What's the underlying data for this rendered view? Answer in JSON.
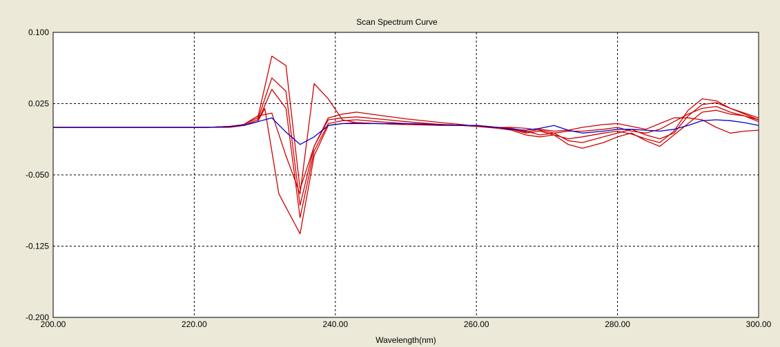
{
  "chart_data": {
    "type": "line",
    "title": "Scan Spectrum Curve",
    "xlabel": "Wavelength(nm)",
    "ylabel": "",
    "xlim": [
      200,
      300
    ],
    "ylim": [
      -0.2,
      0.1
    ],
    "grid": true,
    "x_ticks": [
      200,
      220,
      240,
      260,
      280,
      300
    ],
    "y_ticks": [
      0.1,
      0.025,
      -0.05,
      -0.125,
      -0.2
    ],
    "x_tick_labels": [
      "200.00",
      "220.00",
      "240.00",
      "260.00",
      "280.00",
      "300.00"
    ],
    "y_tick_labels": [
      "0.100",
      "0.025",
      "-0.050",
      "-0.125",
      "-0.200"
    ],
    "colors": {
      "red": "#cc0000",
      "blue": "#0000cc",
      "plot_bg": "#ffffff",
      "window_bg": "#ece9d8"
    },
    "series": [
      {
        "color": "#cc0000",
        "x": [
          200,
          222,
          225,
          227,
          229,
          231,
          233,
          235,
          237,
          239,
          241,
          243,
          246,
          250,
          255,
          258,
          260,
          263,
          265,
          267,
          269,
          271,
          273,
          275,
          278,
          280,
          282,
          284,
          286,
          288,
          290,
          292,
          294,
          296,
          298,
          300
        ],
        "y": [
          0.0,
          0.0,
          0.001,
          0.003,
          0.01,
          0.075,
          0.065,
          -0.065,
          -0.02,
          0.01,
          0.014,
          0.016,
          0.013,
          0.009,
          0.005,
          0.003,
          0.001,
          0.0,
          -0.002,
          -0.006,
          -0.004,
          -0.008,
          -0.012,
          -0.01,
          -0.006,
          -0.004,
          -0.007,
          -0.012,
          -0.016,
          -0.004,
          0.018,
          0.03,
          0.028,
          0.02,
          0.014,
          0.008
        ]
      },
      {
        "color": "#cc0000",
        "x": [
          200,
          222,
          225,
          227,
          229,
          231,
          233,
          235,
          237,
          239,
          241,
          243,
          246,
          250,
          255,
          258,
          260,
          263,
          265,
          267,
          269,
          271,
          273,
          275,
          278,
          280,
          282,
          284,
          286,
          288,
          290,
          292,
          294,
          296,
          298,
          300
        ],
        "y": [
          0.0,
          0.0,
          0.001,
          0.002,
          0.008,
          0.052,
          0.038,
          -0.082,
          -0.02,
          0.008,
          0.01,
          0.011,
          0.009,
          0.006,
          0.003,
          0.002,
          0.002,
          0.0,
          -0.001,
          -0.004,
          -0.008,
          -0.006,
          -0.014,
          -0.016,
          -0.01,
          -0.006,
          -0.002,
          -0.008,
          -0.012,
          -0.006,
          0.012,
          0.024,
          0.026,
          0.02,
          0.015,
          0.01
        ]
      },
      {
        "color": "#cc0000",
        "x": [
          200,
          222,
          225,
          227,
          229,
          231,
          233,
          235,
          237,
          239,
          241,
          243,
          246,
          250,
          255,
          258,
          260,
          263,
          265,
          267,
          269,
          271,
          273,
          275,
          278,
          280,
          282,
          284,
          286,
          288,
          290,
          292,
          294,
          296,
          298,
          300
        ],
        "y": [
          0.0,
          0.0,
          0.001,
          0.002,
          0.006,
          0.04,
          0.02,
          -0.095,
          -0.025,
          0.004,
          0.007,
          0.008,
          0.006,
          0.004,
          0.003,
          0.002,
          0.001,
          -0.001,
          -0.003,
          -0.008,
          -0.01,
          -0.008,
          -0.018,
          -0.022,
          -0.016,
          -0.01,
          -0.006,
          -0.014,
          -0.02,
          -0.008,
          0.004,
          0.016,
          0.018,
          0.014,
          0.012,
          0.008
        ]
      },
      {
        "color": "#cc0000",
        "x": [
          200,
          222,
          225,
          227,
          229,
          230,
          232,
          235,
          237,
          239,
          241,
          243,
          246,
          250,
          255,
          258,
          260,
          263,
          265,
          267,
          269,
          271,
          273,
          275,
          278,
          280,
          282,
          284,
          286,
          288,
          290,
          292,
          294,
          296,
          298,
          300
        ],
        "y": [
          0.0,
          0.0,
          0.0,
          0.002,
          0.006,
          0.02,
          -0.07,
          -0.112,
          -0.03,
          0.002,
          0.004,
          0.005,
          0.004,
          0.003,
          0.002,
          0.002,
          0.001,
          0.0,
          -0.002,
          -0.005,
          -0.002,
          -0.004,
          -0.003,
          0.0,
          0.003,
          0.004,
          0.001,
          -0.002,
          0.004,
          0.01,
          0.01,
          0.008,
          0.0,
          -0.006,
          -0.004,
          -0.003
        ]
      },
      {
        "color": "#cc0000",
        "x": [
          200,
          222,
          225,
          227,
          229,
          231,
          233,
          235,
          237,
          239,
          241,
          243,
          246,
          250,
          255,
          258,
          260,
          263,
          265,
          267,
          269,
          271,
          273,
          275,
          278,
          280,
          282,
          284,
          286,
          288,
          290,
          292,
          294,
          296,
          298,
          300
        ],
        "y": [
          0.0,
          0.0,
          0.001,
          0.003,
          0.012,
          0.015,
          -0.03,
          -0.07,
          0.046,
          0.03,
          0.008,
          0.005,
          0.004,
          0.003,
          0.003,
          0.002,
          0.002,
          0.0,
          0.0,
          -0.001,
          -0.003,
          -0.006,
          -0.004,
          -0.004,
          -0.002,
          0.0,
          -0.004,
          -0.006,
          -0.002,
          0.006,
          0.014,
          0.02,
          0.022,
          0.016,
          0.012,
          0.006
        ]
      },
      {
        "color": "#0000cc",
        "x": [
          200,
          222,
          225,
          227,
          229,
          231,
          233,
          235,
          237,
          239,
          241,
          243,
          246,
          250,
          255,
          258,
          260,
          263,
          265,
          267,
          269,
          271,
          273,
          275,
          278,
          280,
          282,
          284,
          286,
          288,
          290,
          292,
          294,
          296,
          298,
          300
        ],
        "y": [
          0.0,
          0.0,
          0.001,
          0.002,
          0.006,
          0.01,
          -0.005,
          -0.018,
          -0.01,
          0.002,
          0.004,
          0.004,
          0.004,
          0.004,
          0.003,
          0.002,
          0.002,
          0.0,
          -0.002,
          -0.003,
          -0.001,
          0.002,
          -0.003,
          -0.006,
          -0.004,
          -0.002,
          -0.002,
          -0.003,
          -0.004,
          -0.002,
          0.002,
          0.007,
          0.008,
          0.007,
          0.005,
          0.002
        ]
      }
    ]
  }
}
